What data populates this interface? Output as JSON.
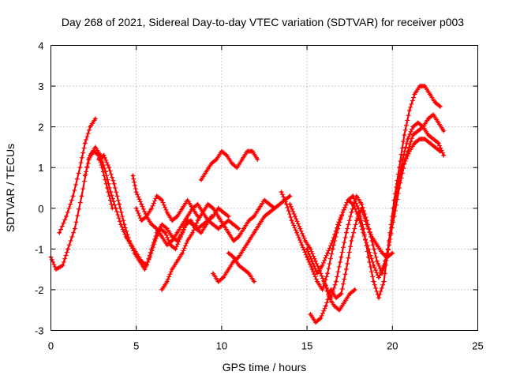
{
  "chart_data": {
    "type": "scatter",
    "title": "Day 268 of 2021, Sidereal Day-to-day VTEC variation (SDTVAR) for receiver p003",
    "xlabel": "GPS time / hours",
    "ylabel": "SDTVAR / TECUs",
    "xlim": [
      0,
      25
    ],
    "ylim": [
      -3,
      4
    ],
    "xticks": [
      "0",
      "5",
      "10",
      "15",
      "20",
      "25"
    ],
    "yticks": [
      "-3",
      "-2",
      "-1",
      "0",
      "1",
      "2",
      "3",
      "4"
    ],
    "grid": true,
    "legend": "none",
    "marker": "plus",
    "color": "#ff0000",
    "series": [
      {
        "name": "trace-1",
        "x": [
          0,
          0.3,
          0.7,
          1.0,
          1.4,
          1.8,
          2.2,
          2.5,
          2.8,
          3.0,
          3.3,
          3.6
        ],
        "y": [
          -1.2,
          -1.5,
          -1.4,
          -1.0,
          -0.5,
          0.3,
          1.2,
          1.4,
          1.3,
          1.0,
          0.5,
          0.0
        ]
      },
      {
        "name": "trace-2",
        "x": [
          0.5,
          0.9,
          1.3,
          1.7,
          2.0,
          2.3,
          2.6
        ],
        "y": [
          -0.6,
          -0.2,
          0.3,
          1.0,
          1.6,
          2.0,
          2.2
        ]
      },
      {
        "name": "trace-3",
        "x": [
          2.0,
          2.3,
          2.6,
          2.9,
          3.2,
          3.5,
          3.8,
          4.1,
          4.4,
          4.7,
          5.0,
          5.3,
          5.6,
          5.9,
          6.2,
          6.5,
          6.8,
          7.1,
          7.4,
          7.7,
          8.0,
          8.3,
          8.6,
          8.9,
          9.2,
          9.5,
          9.8,
          10.1,
          10.4,
          10.7,
          11.0
        ],
        "y": [
          0.8,
          1.3,
          1.5,
          1.3,
          0.9,
          0.4,
          0.0,
          -0.4,
          -0.7,
          -0.9,
          -1.1,
          -1.3,
          -1.4,
          -1.0,
          -0.6,
          -0.4,
          -0.5,
          -0.7,
          -0.8,
          -0.6,
          -0.3,
          -0.4,
          -0.5,
          -0.4,
          -0.3,
          -0.4,
          -0.5,
          -0.4,
          -0.3,
          -0.4,
          -0.5
        ]
      },
      {
        "name": "trace-4",
        "x": [
          2.8,
          3.1,
          3.4,
          3.7,
          4.0,
          4.3,
          4.6,
          4.9,
          5.2,
          5.5,
          5.8,
          6.1,
          6.4,
          6.7,
          7.0,
          7.3,
          7.6,
          7.9,
          8.2,
          8.5,
          8.8,
          9.1,
          9.4
        ],
        "y": [
          1.2,
          1.3,
          1.0,
          0.6,
          0.1,
          -0.4,
          -0.8,
          -1.1,
          -1.3,
          -1.5,
          -1.2,
          -0.8,
          -0.5,
          -0.6,
          -0.9,
          -1.0,
          -0.7,
          -0.4,
          -0.3,
          -0.5,
          -0.6,
          -0.4,
          -0.2
        ]
      },
      {
        "name": "trace-5",
        "x": [
          4.8,
          5.0,
          5.3,
          5.6,
          5.9,
          6.2,
          6.5,
          6.8,
          7.1,
          7.4,
          7.7,
          8.0,
          8.3,
          8.6,
          8.9,
          9.2,
          9.5,
          9.8,
          10.1,
          10.4
        ],
        "y": [
          0.8,
          0.4,
          0.1,
          -0.2,
          -0.4,
          -0.5,
          -0.7,
          -0.9,
          -0.8,
          -0.6,
          -0.4,
          -0.2,
          0.0,
          0.1,
          -0.1,
          -0.3,
          -0.2,
          0.0,
          -0.1,
          -0.2
        ]
      },
      {
        "name": "trace-6",
        "x": [
          5.0,
          5.3,
          5.6,
          5.9,
          6.2,
          6.5,
          6.8,
          7.1,
          7.4,
          7.7,
          8.0,
          8.3,
          8.6
        ],
        "y": [
          0.0,
          -0.3,
          -0.2,
          0.0,
          0.3,
          0.2,
          -0.1,
          -0.3,
          -0.2,
          0.0,
          0.2,
          0.0,
          -0.2
        ]
      },
      {
        "name": "trace-7",
        "x": [
          6.5,
          6.8,
          7.1,
          7.4,
          7.7,
          8.0,
          8.3,
          8.6,
          8.9,
          9.2,
          9.5,
          9.8,
          10.1,
          10.4,
          10.7,
          11.0,
          11.3,
          11.6,
          11.9,
          12.2,
          12.5,
          12.8,
          13.1
        ],
        "y": [
          -2.0,
          -1.8,
          -1.5,
          -1.3,
          -1.1,
          -0.8,
          -0.6,
          -0.3,
          -0.1,
          0.1,
          0.0,
          -0.2,
          -0.4,
          -0.6,
          -0.8,
          -0.7,
          -0.5,
          -0.3,
          -0.2,
          0.0,
          0.2,
          0.1,
          0.0
        ]
      },
      {
        "name": "trace-8",
        "x": [
          8.8,
          9.1,
          9.4,
          9.7,
          10.0,
          10.3,
          10.6,
          10.9,
          11.2,
          11.5,
          11.8,
          12.1
        ],
        "y": [
          0.7,
          0.9,
          1.1,
          1.2,
          1.4,
          1.3,
          1.1,
          1.0,
          1.2,
          1.4,
          1.4,
          1.2
        ]
      },
      {
        "name": "trace-9",
        "x": [
          9.5,
          9.8,
          10.1,
          10.4,
          10.7,
          11.0,
          11.3,
          11.6,
          11.9,
          12.2,
          12.5,
          12.8,
          13.1,
          13.4,
          13.7,
          14.0
        ],
        "y": [
          -1.6,
          -1.8,
          -1.7,
          -1.5,
          -1.3,
          -1.2,
          -1.0,
          -0.8,
          -0.6,
          -0.4,
          -0.2,
          -0.1,
          0.0,
          0.1,
          0.2,
          0.3
        ]
      },
      {
        "name": "trace-10",
        "x": [
          10.4,
          10.7,
          11.0,
          11.3,
          11.6,
          11.9
        ],
        "y": [
          -1.1,
          -1.2,
          -1.4,
          -1.5,
          -1.6,
          -1.8
        ]
      },
      {
        "name": "trace-11",
        "x": [
          13.5,
          13.8,
          14.1,
          14.4,
          14.7,
          15.0,
          15.3,
          15.6,
          15.9,
          16.2,
          16.5,
          16.8,
          17.1,
          17.4,
          17.7,
          18.0,
          18.3,
          18.6,
          18.9,
          19.2,
          19.5,
          19.8,
          20.1,
          20.4,
          20.7,
          21.0,
          21.3,
          21.6,
          21.9,
          22.2,
          22.5,
          22.8
        ],
        "y": [
          0.4,
          0.1,
          -0.3,
          -0.6,
          -0.9,
          -1.2,
          -1.5,
          -1.8,
          -2.0,
          -1.6,
          -1.0,
          -0.5,
          -0.1,
          0.2,
          0.3,
          0.0,
          -0.5,
          -1.2,
          -1.8,
          -2.2,
          -1.8,
          -0.8,
          0.2,
          1.0,
          1.8,
          2.4,
          2.8,
          3.0,
          3.0,
          2.8,
          2.6,
          2.5
        ]
      },
      {
        "name": "trace-12",
        "x": [
          14.0,
          14.3,
          14.6,
          14.9,
          15.2,
          15.5,
          15.8,
          16.1,
          16.4,
          16.7,
          17.0,
          17.3,
          17.6,
          17.9,
          18.2,
          18.5,
          18.8,
          19.1,
          19.4,
          19.7,
          20.0,
          20.3,
          20.6,
          20.9,
          21.2,
          21.5,
          21.8,
          22.1,
          22.4,
          22.7,
          23.0
        ],
        "y": [
          0.1,
          -0.2,
          -0.5,
          -0.8,
          -1.0,
          -1.3,
          -1.6,
          -1.9,
          -2.2,
          -1.8,
          -1.2,
          -0.6,
          -0.1,
          0.3,
          0.1,
          -0.3,
          -0.8,
          -1.3,
          -1.6,
          -1.2,
          -0.3,
          0.5,
          1.2,
          1.7,
          2.0,
          2.1,
          2.0,
          2.2,
          2.3,
          2.1,
          1.9
        ]
      },
      {
        "name": "trace-13",
        "x": [
          15.0,
          15.3,
          15.6,
          15.9,
          16.2,
          16.5,
          16.8,
          17.1,
          17.4,
          17.7,
          18.0,
          18.3,
          18.6,
          18.9,
          19.2,
          19.5,
          19.8,
          20.1,
          20.4,
          20.7,
          21.0,
          21.3,
          21.6,
          21.9,
          22.2,
          22.5,
          22.8
        ],
        "y": [
          -1.0,
          -1.3,
          -1.6,
          -1.4,
          -1.1,
          -0.8,
          -0.4,
          -0.1,
          0.2,
          0.1,
          -0.2,
          -0.6,
          -1.0,
          -1.4,
          -1.7,
          -1.4,
          -0.9,
          -0.2,
          0.5,
          1.1,
          1.4,
          1.6,
          1.7,
          1.7,
          1.6,
          1.5,
          1.4
        ]
      },
      {
        "name": "trace-14",
        "x": [
          15.2,
          15.5,
          15.8,
          16.1,
          16.4,
          16.7,
          17.0,
          17.3,
          17.6,
          17.9,
          18.2,
          18.5,
          18.8,
          19.1,
          19.4,
          19.7,
          20.0
        ],
        "y": [
          -2.6,
          -2.8,
          -2.7,
          -2.4,
          -2.0,
          -2.2,
          -2.1,
          -1.5,
          -0.8,
          -0.3,
          0.0,
          -0.4,
          -0.7,
          -0.9,
          -1.1,
          -1.2,
          -1.1
        ]
      },
      {
        "name": "trace-15",
        "x": [
          16.0,
          16.3,
          16.6,
          16.9,
          17.2,
          17.5,
          17.8
        ],
        "y": [
          -1.8,
          -2.2,
          -2.4,
          -2.5,
          -2.3,
          -2.1,
          -2.0
        ]
      },
      {
        "name": "trace-16",
        "x": [
          20.3,
          20.6,
          20.9,
          21.2,
          21.5,
          21.8,
          22.1,
          22.4,
          22.7,
          23.0
        ],
        "y": [
          0.6,
          1.0,
          1.4,
          1.8,
          1.9,
          2.0,
          1.8,
          1.7,
          1.6,
          1.3
        ]
      }
    ]
  }
}
